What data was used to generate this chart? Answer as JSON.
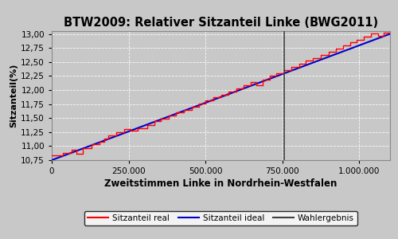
{
  "title": "BTW2009: Relativer Sitzanteil Linke (BWG2011)",
  "xlabel": "Zweitstimmen Linke in Nordrhein-Westfalen",
  "ylabel": "Sitzanteil(%)",
  "x_min": 0,
  "x_max": 1100000,
  "y_min": 10.75,
  "y_max": 13.05,
  "wahlergebnis_x": 757000,
  "ideal_start_y": 10.75,
  "ideal_end_y": 13.0,
  "bg_color": "#c8c8c8",
  "fig_color": "#c8c8c8",
  "line_real_color": "#ff0000",
  "line_ideal_color": "#0000cc",
  "line_wahlergebnis_color": "#404040",
  "legend_labels": [
    "Sitzanteil real",
    "Sitzanteil ideal",
    "Wahlergebnis"
  ],
  "yticks": [
    10.75,
    11.0,
    11.25,
    11.5,
    11.75,
    12.0,
    12.25,
    12.5,
    12.75,
    13.0
  ],
  "xticks": [
    0,
    250000,
    500000,
    750000,
    1000000
  ],
  "stair_steps": [
    [
      0,
      10.83
    ],
    [
      35000,
      10.83
    ],
    [
      35000,
      10.88
    ],
    [
      65000,
      10.88
    ],
    [
      65000,
      10.93
    ],
    [
      80000,
      10.93
    ],
    [
      80000,
      10.87
    ],
    [
      100000,
      10.87
    ],
    [
      100000,
      10.97
    ],
    [
      130000,
      10.97
    ],
    [
      130000,
      11.03
    ],
    [
      155000,
      11.03
    ],
    [
      155000,
      11.08
    ],
    [
      170000,
      11.08
    ],
    [
      170000,
      11.14
    ],
    [
      185000,
      11.14
    ],
    [
      185000,
      11.19
    ],
    [
      210000,
      11.19
    ],
    [
      210000,
      11.25
    ],
    [
      235000,
      11.25
    ],
    [
      235000,
      11.3
    ],
    [
      255000,
      11.3
    ],
    [
      255000,
      11.27
    ],
    [
      280000,
      11.27
    ],
    [
      280000,
      11.32
    ],
    [
      310000,
      11.32
    ],
    [
      310000,
      11.38
    ],
    [
      335000,
      11.38
    ],
    [
      335000,
      11.44
    ],
    [
      355000,
      11.44
    ],
    [
      355000,
      11.49
    ],
    [
      380000,
      11.49
    ],
    [
      380000,
      11.54
    ],
    [
      405000,
      11.54
    ],
    [
      405000,
      11.6
    ],
    [
      430000,
      11.6
    ],
    [
      430000,
      11.65
    ],
    [
      455000,
      11.65
    ],
    [
      455000,
      11.7
    ],
    [
      480000,
      11.7
    ],
    [
      480000,
      11.76
    ],
    [
      500000,
      11.76
    ],
    [
      500000,
      11.81
    ],
    [
      525000,
      11.81
    ],
    [
      525000,
      11.87
    ],
    [
      550000,
      11.87
    ],
    [
      550000,
      11.92
    ],
    [
      575000,
      11.92
    ],
    [
      575000,
      11.97
    ],
    [
      600000,
      11.97
    ],
    [
      600000,
      12.03
    ],
    [
      625000,
      12.03
    ],
    [
      625000,
      12.08
    ],
    [
      648000,
      12.08
    ],
    [
      648000,
      12.14
    ],
    [
      665000,
      12.14
    ],
    [
      665000,
      12.08
    ],
    [
      685000,
      12.08
    ],
    [
      685000,
      12.19
    ],
    [
      710000,
      12.19
    ],
    [
      710000,
      12.25
    ],
    [
      730000,
      12.25
    ],
    [
      730000,
      12.3
    ],
    [
      755000,
      12.3
    ],
    [
      755000,
      12.36
    ],
    [
      780000,
      12.36
    ],
    [
      780000,
      12.41
    ],
    [
      805000,
      12.41
    ],
    [
      805000,
      12.47
    ],
    [
      825000,
      12.47
    ],
    [
      825000,
      12.52
    ],
    [
      850000,
      12.52
    ],
    [
      850000,
      12.57
    ],
    [
      875000,
      12.57
    ],
    [
      875000,
      12.63
    ],
    [
      900000,
      12.63
    ],
    [
      900000,
      12.68
    ],
    [
      925000,
      12.68
    ],
    [
      925000,
      12.74
    ],
    [
      948000,
      12.74
    ],
    [
      948000,
      12.79
    ],
    [
      970000,
      12.79
    ],
    [
      970000,
      12.85
    ],
    [
      992000,
      12.85
    ],
    [
      992000,
      12.9
    ],
    [
      1015000,
      12.9
    ],
    [
      1015000,
      12.95
    ],
    [
      1038000,
      12.95
    ],
    [
      1038000,
      13.01
    ],
    [
      1060000,
      13.01
    ],
    [
      1060000,
      12.97
    ],
    [
      1080000,
      12.97
    ],
    [
      1080000,
      13.02
    ],
    [
      1100000,
      13.02
    ]
  ]
}
